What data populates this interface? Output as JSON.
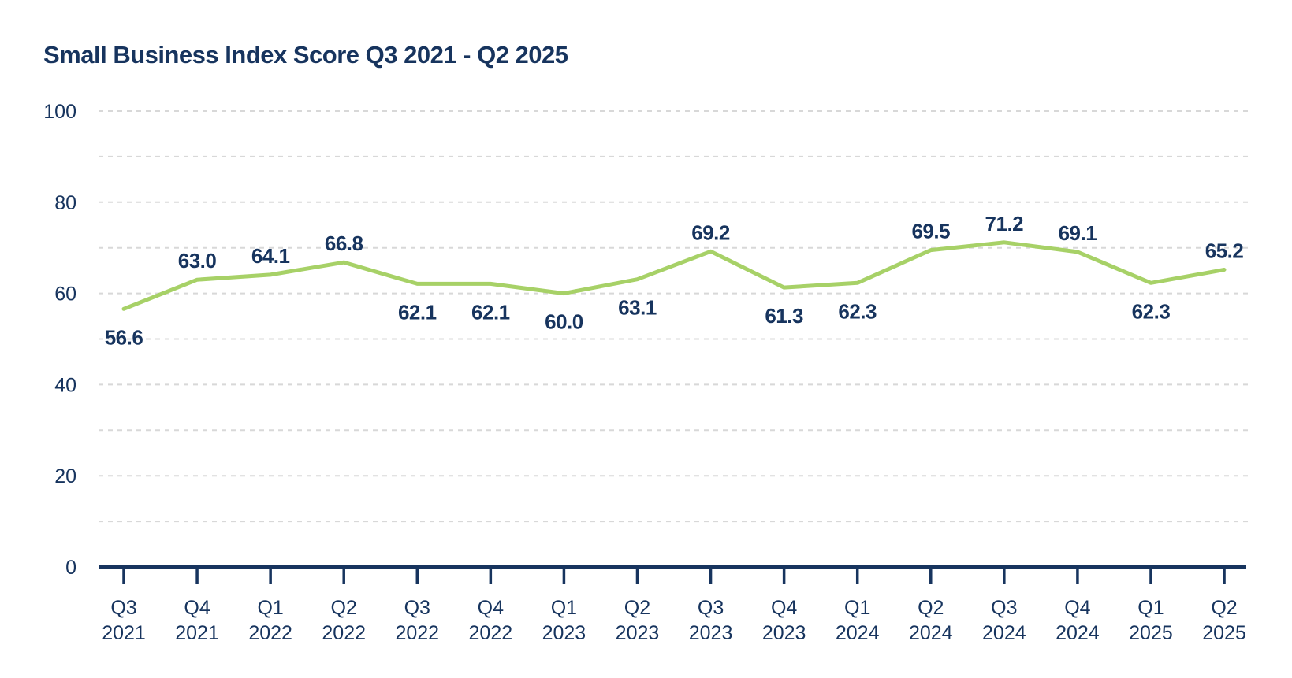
{
  "header": {
    "title": "Small Business Index Score Q3 2021 - Q2 2025"
  },
  "chart_data": {
    "type": "line",
    "title": "Small Business Index Score Q3 2021 - Q2 2025",
    "categories": [
      "Q3 2021",
      "Q4 2021",
      "Q1 2022",
      "Q2 2022",
      "Q3 2022",
      "Q4 2022",
      "Q1 2023",
      "Q2 2023",
      "Q3 2023",
      "Q4 2023",
      "Q1 2024",
      "Q2 2024",
      "Q3 2024",
      "Q4 2024",
      "Q1 2025",
      "Q2 2025"
    ],
    "category_line1": [
      "Q3",
      "Q4",
      "Q1",
      "Q2",
      "Q3",
      "Q4",
      "Q1",
      "Q2",
      "Q3",
      "Q4",
      "Q1",
      "Q2",
      "Q3",
      "Q4",
      "Q1",
      "Q2"
    ],
    "category_line2": [
      "2021",
      "2021",
      "2022",
      "2022",
      "2022",
      "2022",
      "2023",
      "2023",
      "2023",
      "2023",
      "2024",
      "2024",
      "2024",
      "2024",
      "2025",
      "2025"
    ],
    "series": [
      {
        "name": "Small Business Index Score",
        "values": [
          56.6,
          63.0,
          64.1,
          66.8,
          62.1,
          62.1,
          60.0,
          63.1,
          69.2,
          61.3,
          62.3,
          69.5,
          71.2,
          69.1,
          62.3,
          65.2
        ],
        "data_labels": [
          "56.6",
          "63.0",
          "64.1",
          "66.8",
          "62.1",
          "62.1",
          "60.0",
          "63.1",
          "69.2",
          "61.3",
          "62.3",
          "69.5",
          "71.2",
          "69.1",
          "62.3",
          "65.2"
        ],
        "label_position": [
          "below",
          "above",
          "above",
          "above",
          "below",
          "below",
          "below",
          "below",
          "above",
          "below",
          "below",
          "above",
          "above",
          "above",
          "below",
          "above"
        ]
      }
    ],
    "xlabel": "",
    "ylabel": "",
    "ylim": [
      0,
      100
    ],
    "ytick_labels": [
      "0",
      "20",
      "40",
      "60",
      "80",
      "100"
    ],
    "ytick_values": [
      0,
      20,
      40,
      60,
      80,
      100
    ],
    "gridline_values": [
      10,
      20,
      30,
      40,
      50,
      60,
      70,
      80,
      90,
      100
    ],
    "grid_style": "dashed horizontal",
    "legend_position": "none",
    "colors": {
      "line": "#a7d167",
      "text": "#17345e",
      "axis": "#17345e",
      "grid": "#d8d8d8",
      "background": "#ffffff"
    }
  }
}
